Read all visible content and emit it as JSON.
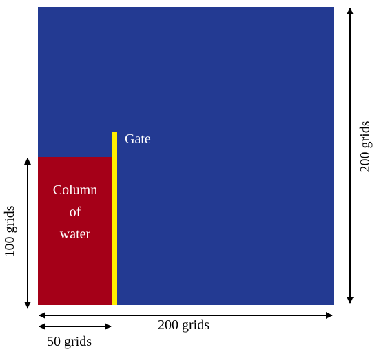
{
  "colors": {
    "domain": "#233a92",
    "water": "#a50018",
    "gate": "#ffee00",
    "arrow": "#000000"
  },
  "labels": {
    "gate": "Gate",
    "water_line1": "Column",
    "water_line2": "of",
    "water_line3": "water",
    "domain_width": "200 grids",
    "domain_height": "200 grids",
    "water_height": "100 grids",
    "water_width": "50 grids"
  }
}
